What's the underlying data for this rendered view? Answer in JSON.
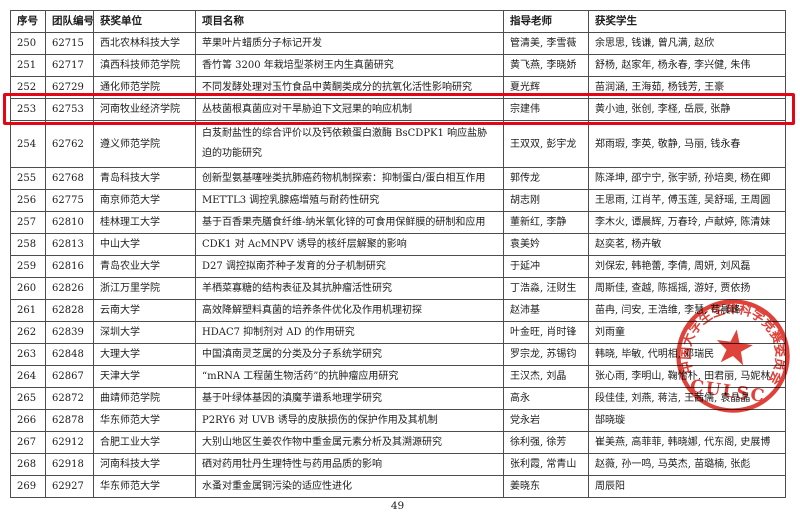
{
  "page": {
    "number": "49"
  },
  "table": {
    "headers": [
      "序号",
      "团队编号",
      "获奖单位",
      "项目名称",
      "指导老师",
      "获奖学生"
    ],
    "rows": [
      {
        "no": "250",
        "team": "62715",
        "unit": "西北农林科技大学",
        "project": "苹果叶片蜡质分子标记开发",
        "advisors": "管清美, 李雪薇",
        "students": "余思思, 钱谦, 曾凡满, 赵欣"
      },
      {
        "no": "251",
        "team": "62717",
        "unit": "滇西科技师范学院",
        "project": "香竹箐 3200 年栽培型茶树王内生真菌研究",
        "advisors": "黄飞燕, 李晓娇",
        "students": "舒杨, 赵家年, 杨永春, 李兴健, 朱伟"
      },
      {
        "no": "252",
        "team": "62729",
        "unit": "通化师范学院",
        "project": "不同发酵处理对玉竹食品中黄酮类成分的抗氧化活性影响研究",
        "advisors": "夏光辉",
        "students": "苗润涵, 王海茹, 杨钱芳, 王豪"
      },
      {
        "no": "253",
        "team": "62753",
        "unit": "河南牧业经济学院",
        "project": "丛枝菌根真菌应对干旱胁迫下文冠果的响应机制",
        "advisors": "宗建伟",
        "students": "黄小迪, 张创, 李柽, 岳辰, 张静"
      },
      {
        "no": "254",
        "team": "62762",
        "unit": "遵义师范学院",
        "project": "白芨耐盐性的综合评价以及钙依赖蛋白激酶 BsCDPK1 响应盐胁迫的功能研究",
        "advisors": "王双双, 彭宇龙",
        "students": "郑雨瑕, 李英, 敬静, 马丽, 钱永春"
      },
      {
        "no": "255",
        "team": "62768",
        "unit": "青岛科技大学",
        "project": "创新型氨基噻唑类抗肺癌药物机制探索：抑制蛋白/蛋白相互作用",
        "advisors": "郭传龙",
        "students": "陈泽坤, 邵宁宁, 张宇骄, 孙培奥, 杨在卿"
      },
      {
        "no": "256",
        "team": "62775",
        "unit": "南京师范大学",
        "project": "METTL3 调控乳腺癌增殖与耐药性研究",
        "advisors": "胡志刚",
        "students": "王思雨, 江肖芊, 傅玉莲, 吴舒瑶, 王周圆"
      },
      {
        "no": "257",
        "team": "62810",
        "unit": "桂林理工大学",
        "project": "基于百香果壳膳食纤维-纳米氧化锌的可食用保鲜膜的研制和应用",
        "advisors": "董新红, 李静",
        "students": "李木火, 谭晨辉, 万春玲, 卢献婷, 陈清妹"
      },
      {
        "no": "258",
        "team": "62813",
        "unit": "中山大学",
        "project": "CDK1 对 AcMNPV 诱导的核纤层解聚的影响",
        "advisors": "袁美妗",
        "students": "赵奕茗, 杨卉敏"
      },
      {
        "no": "259",
        "team": "62816",
        "unit": "青岛农业大学",
        "project": "D27 调控拟南芥种子发育的分子机制研究",
        "advisors": "于延冲",
        "students": "刘保宏, 韩艳蕾, 李倩, 周妍, 刘风磊"
      },
      {
        "no": "260",
        "team": "62826",
        "unit": "浙江万里学院",
        "project": "羊栖菜寡糖的结构表征及其抗肿瘤活性研究",
        "advisors": "丁浩淼, 汪财生",
        "students": "周斯佳, 查越, 陈摇摇, 游好, 贾依扬"
      },
      {
        "no": "261",
        "team": "62828",
        "unit": "云南大学",
        "project": "高效降解塑料真菌的培养条件优化及作用机理初探",
        "advisors": "赵沛基",
        "students": "苗冉, 闫安, 王浩维, 李慧, 苟晨峰"
      },
      {
        "no": "262",
        "team": "62839",
        "unit": "深圳大学",
        "project": "HDAC7 抑制剂对 AD 的作用研究",
        "advisors": "叶金旺, 肖时锋",
        "students": "刘雨童"
      },
      {
        "no": "263",
        "team": "62848",
        "unit": "大理大学",
        "project": "中国滇南灵芝属的分类及分子系统学研究",
        "advisors": "罗宗龙, 苏锡钧",
        "students": "韩晓, 毕敏, 代明相, 邓瑞民"
      },
      {
        "no": "264",
        "team": "62867",
        "unit": "天津大学",
        "project": "“mRNA 工程菌生物活药”的抗肿瘤应用研究",
        "advisors": "王汉杰, 刘晶",
        "students": "张心雨, 李明山, 鞠怡朴, 田君丽, 马妮林"
      },
      {
        "no": "265",
        "team": "62872",
        "unit": "曲靖师范学院",
        "project": "基于叶绿体基因的滇魔芋谱系地理学研究",
        "advisors": "高永",
        "students": "段佳佳, 刘燕, 蒋洁, 王茜儒, 袁晶晶"
      },
      {
        "no": "266",
        "team": "62878",
        "unit": "华东师范大学",
        "project": "P2RY6 对 UVB 诱导的皮肤损伤的保护作用及其机制",
        "advisors": "党永岩",
        "students": "郜晓璇"
      },
      {
        "no": "267",
        "team": "62912",
        "unit": "合肥工业大学",
        "project": "大别山地区生姜农作物中重金属元素分析及其溯源研究",
        "advisors": "徐利强, 徐芳",
        "students": "崔美燕, 高菲菲, 韩晓娜, 代东阁, 史展博"
      },
      {
        "no": "268",
        "team": "62918",
        "unit": "河南科技大学",
        "project": "硒对药用牡丹生理特性与药用品质的影响",
        "advisors": "张利霞, 常青山",
        "students": "赵薇, 孙一鸣, 马英杰, 苗璐楠, 张彪"
      },
      {
        "no": "269",
        "team": "62927",
        "unit": "华东师范大学",
        "project": "水蚤对重金属铜污染的适应性进化",
        "advisors": "姜晓东",
        "students": "周辰阳"
      }
    ]
  },
  "highlight": {
    "row_no": "253",
    "border_color": "#e30613"
  },
  "stamp": {
    "ring_text": "中国大学生生命科学竞赛委员会",
    "acronym": "CULSC",
    "color": "#d9251c",
    "icon": "red-star-icon"
  }
}
